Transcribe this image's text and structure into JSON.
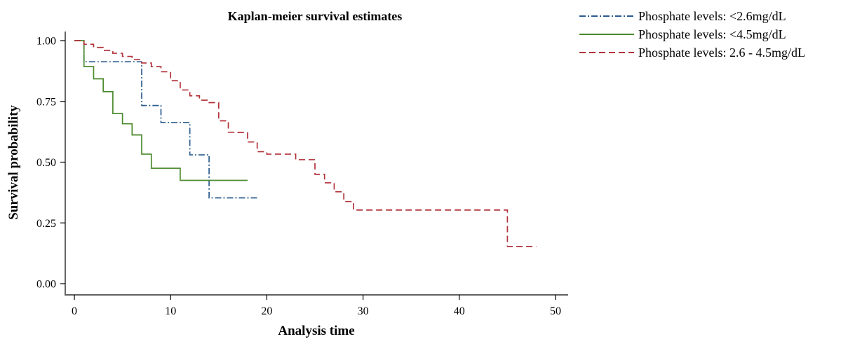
{
  "chart_data": {
    "type": "line",
    "step": true,
    "title": "Kaplan-meier survival estimates",
    "xlabel": "Analysis time",
    "ylabel": "Survival probability",
    "xlim": [
      0,
      50
    ],
    "ylim": [
      0,
      1
    ],
    "x_ticks": [
      0,
      10,
      20,
      30,
      40,
      50
    ],
    "x_tick_labels": [
      "0",
      "10",
      "20",
      "30",
      "40",
      "50"
    ],
    "y_ticks": [
      0,
      0.25,
      0.5,
      0.75,
      1.0
    ],
    "y_tick_labels": [
      "0.00",
      "0.25",
      "0.50",
      "0.75",
      "1.00"
    ],
    "grid": false,
    "legend_position": "top-right",
    "series": [
      {
        "name": "Phosphate levels: <2.6mg/dL",
        "color": "#2a5c8f",
        "dash": "dash-dot",
        "x": [
          0,
          1,
          7,
          9,
          12,
          14,
          19
        ],
        "y": [
          1.0,
          0.913,
          0.733,
          0.663,
          0.53,
          0.353,
          0.353
        ]
      },
      {
        "name": "Phosphate levels: <4.5mg/dL",
        "color": "#4d8b2e",
        "dash": "solid",
        "x": [
          0,
          1,
          2,
          3,
          4,
          5,
          6,
          7,
          8,
          11,
          18
        ],
        "y": [
          1.0,
          0.893,
          0.843,
          0.79,
          0.7,
          0.658,
          0.612,
          0.533,
          0.475,
          0.425,
          0.425
        ]
      },
      {
        "name": "Phosphate levels: 2.6 - 4.5mg/dL",
        "color": "#b2333b",
        "dash": "dashed",
        "x": [
          0,
          1,
          2,
          3,
          4,
          5,
          6,
          7,
          8,
          9,
          10,
          11,
          12,
          13,
          14,
          15,
          16,
          17,
          18,
          19,
          20,
          23,
          25,
          26,
          27,
          28,
          29,
          45,
          48
        ],
        "y": [
          1.0,
          0.985,
          0.972,
          0.96,
          0.948,
          0.935,
          0.922,
          0.908,
          0.893,
          0.872,
          0.835,
          0.797,
          0.773,
          0.755,
          0.745,
          0.67,
          0.623,
          0.622,
          0.583,
          0.543,
          0.533,
          0.51,
          0.45,
          0.415,
          0.378,
          0.338,
          0.303,
          0.153,
          0.153
        ]
      }
    ]
  }
}
